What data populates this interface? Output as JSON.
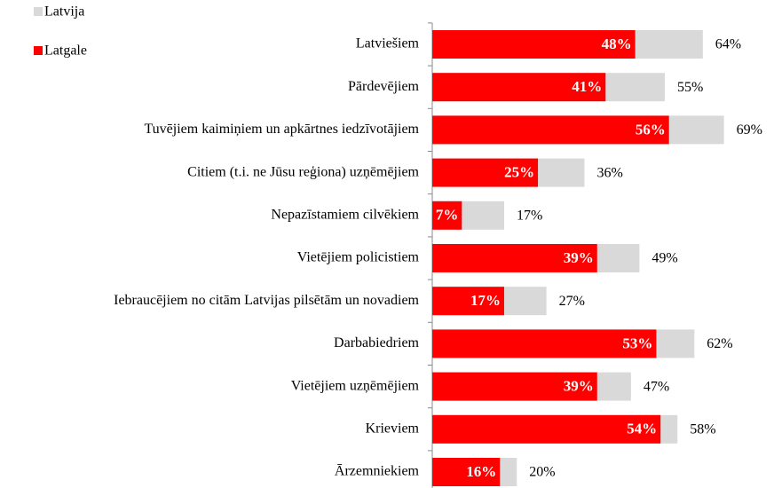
{
  "chart_data": {
    "type": "bar",
    "orientation": "horizontal",
    "categories": [
      "Latviešiem",
      "Pārdevējiem",
      "Tuvējiem kaimiņiem un apkārtnes iedzīvotājiem",
      "Citiem (t.i. ne Jūsu reģiona) uzņēmējiem",
      "Nepazīstamiem cilvēkiem",
      "Vietējiem policistiem",
      "Iebraucējiem no citām Latvijas pilsētām un novadiem",
      "Darbabiedriem",
      "Vietējiem uzņēmējiem",
      "Krieviem",
      "Ārzemniekiem"
    ],
    "series": [
      {
        "name": "Latvija",
        "color": "#d9d9d9",
        "values": [
          64,
          55,
          69,
          36,
          17,
          49,
          27,
          62,
          47,
          58,
          20
        ],
        "value_labels": [
          "64%",
          "55%",
          "69%",
          "36%",
          "17%",
          "49%",
          "27%",
          "62%",
          "47%",
          "58%",
          "20%"
        ]
      },
      {
        "name": "Latgale",
        "color": "#ff0000",
        "values": [
          48,
          41,
          56,
          25,
          7,
          39,
          17,
          53,
          39,
          54,
          16
        ],
        "value_labels": [
          "48%",
          "41%",
          "56%",
          "25%",
          "7%",
          "39%",
          "17%",
          "53%",
          "39%",
          "54%",
          "16%"
        ]
      }
    ],
    "xlim": [
      0,
      80
    ],
    "legend": "top-left"
  }
}
